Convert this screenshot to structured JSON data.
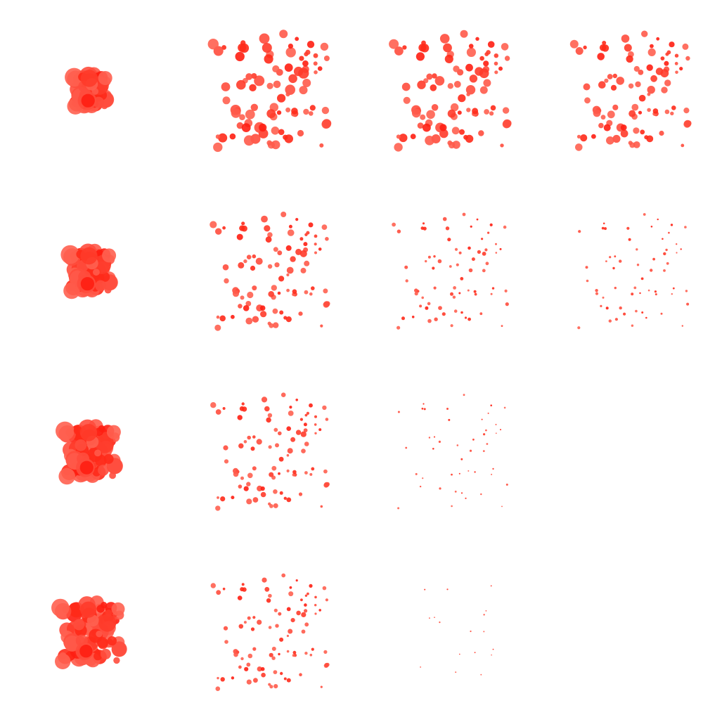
{
  "grid": {
    "rows": 4,
    "cols": 4
  },
  "colors": {
    "background": "#ffffff",
    "palette": [
      "#ff2a1a",
      "#ff3b2a",
      "#ff4d3d",
      "#ff5a4a",
      "#ff6050",
      "#ff1e12"
    ]
  },
  "cells": [
    {
      "row": 0,
      "col": 0,
      "spread": 0.28,
      "size": 1.0,
      "keep": 1.0
    },
    {
      "row": 0,
      "col": 1,
      "spread": 1.0,
      "size": 0.55,
      "keep": 1.0
    },
    {
      "row": 0,
      "col": 2,
      "spread": 1.0,
      "size": 0.5,
      "keep": 1.0
    },
    {
      "row": 0,
      "col": 3,
      "spread": 1.0,
      "size": 0.42,
      "keep": 1.0
    },
    {
      "row": 1,
      "col": 0,
      "spread": 0.35,
      "size": 1.0,
      "keep": 1.0
    },
    {
      "row": 1,
      "col": 1,
      "spread": 1.0,
      "size": 0.35,
      "keep": 1.0
    },
    {
      "row": 1,
      "col": 2,
      "spread": 1.0,
      "size": 0.18,
      "keep": 0.75
    },
    {
      "row": 1,
      "col": 3,
      "spread": 1.0,
      "size": 0.13,
      "keep": 0.55
    },
    {
      "row": 2,
      "col": 0,
      "spread": 0.44,
      "size": 1.0,
      "keep": 1.0
    },
    {
      "row": 2,
      "col": 1,
      "spread": 1.0,
      "size": 0.28,
      "keep": 1.0
    },
    {
      "row": 2,
      "col": 2,
      "spread": 1.0,
      "size": 0.08,
      "keep": 0.4
    },
    {
      "row": 2,
      "col": 3,
      "spread": 1.0,
      "size": 0.0,
      "keep": 0.0
    },
    {
      "row": 3,
      "col": 0,
      "spread": 0.52,
      "size": 0.95,
      "keep": 1.0
    },
    {
      "row": 3,
      "col": 1,
      "spread": 1.0,
      "size": 0.24,
      "keep": 1.0
    },
    {
      "row": 3,
      "col": 2,
      "spread": 1.0,
      "size": 0.04,
      "keep": 0.2
    },
    {
      "row": 3,
      "col": 3,
      "spread": 1.0,
      "size": 0.0,
      "keep": 0.0
    }
  ]
}
